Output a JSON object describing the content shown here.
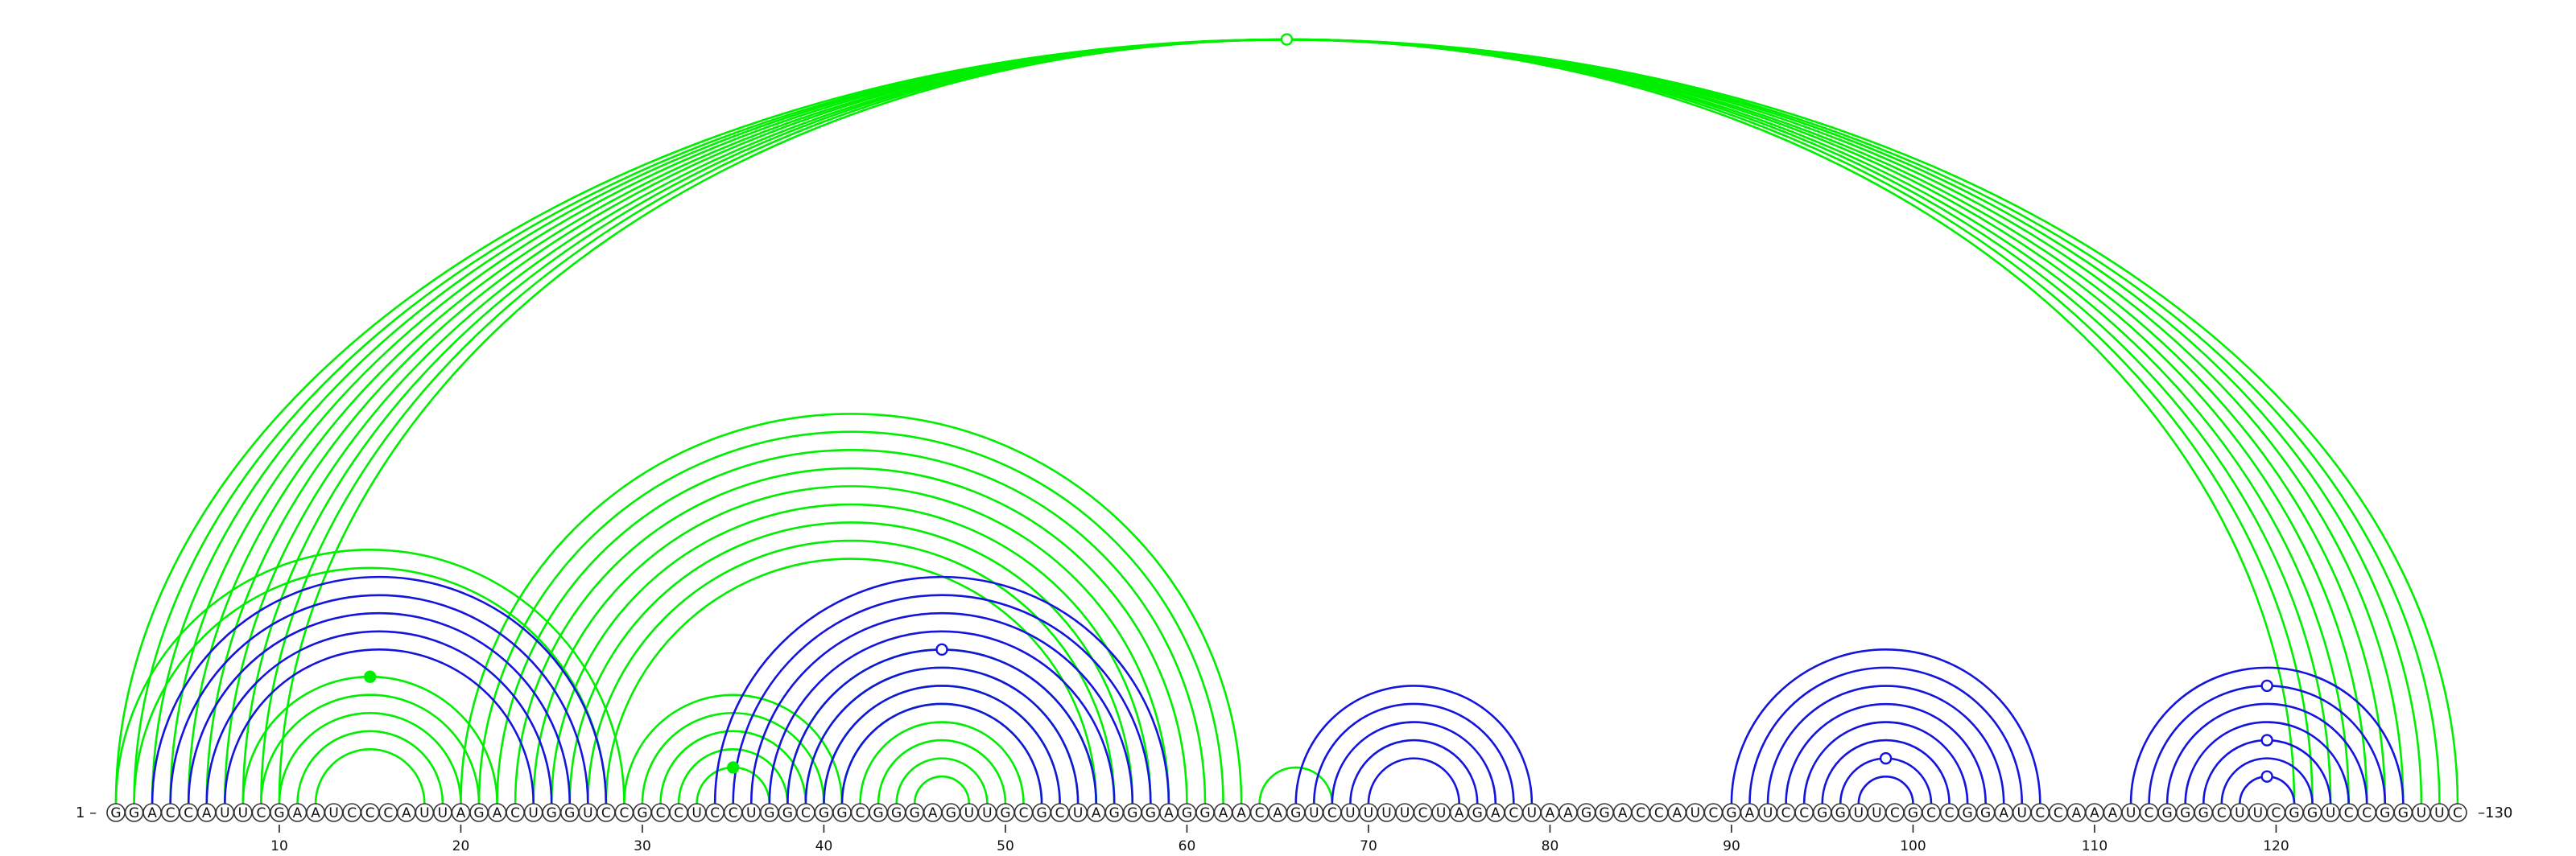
{
  "sequence": "GGACCAUUCGAAUCCCAUUAGACUGGUCCGCCUCCUGGCGGCGGGAGUUGCGCUAGGGAGGAACAGUCUUUUCUAGACUAAGGACCAUCGAUCCGGUUCGCCGGAUCCAAAUCGGGCUUCGGUCCGGUUC",
  "labels": {
    "start": "1 –",
    "end": "–130"
  },
  "ticks": [
    10,
    20,
    30,
    40,
    50,
    60,
    70,
    80,
    90,
    100,
    110,
    120
  ],
  "colors": {
    "green": "#00ee00",
    "blue": "#1414dd"
  },
  "arcs": {
    "blue": [
      [
        3,
        28
      ],
      [
        4,
        27
      ],
      [
        5,
        26
      ],
      [
        6,
        25
      ],
      [
        7,
        24
      ],
      [
        34,
        59
      ],
      [
        35,
        58
      ],
      [
        36,
        57
      ],
      [
        37,
        56
      ],
      [
        38,
        55
      ],
      [
        39,
        54
      ],
      [
        40,
        53
      ],
      [
        41,
        52
      ],
      [
        66,
        79
      ],
      [
        67,
        78
      ],
      [
        68,
        77
      ],
      [
        69,
        76
      ],
      [
        70,
        75
      ],
      [
        90,
        107
      ],
      [
        91,
        106
      ],
      [
        92,
        105
      ],
      [
        93,
        104
      ],
      [
        94,
        103
      ],
      [
        95,
        102
      ],
      [
        96,
        101
      ],
      [
        97,
        100
      ],
      [
        112,
        127
      ],
      [
        113,
        126
      ],
      [
        114,
        125
      ],
      [
        115,
        124
      ],
      [
        116,
        123
      ],
      [
        117,
        122
      ],
      [
        118,
        121
      ]
    ],
    "green": [
      [
        1,
        130
      ],
      [
        2,
        129
      ],
      [
        3,
        128
      ],
      [
        4,
        127
      ],
      [
        5,
        126
      ],
      [
        6,
        125
      ],
      [
        7,
        124
      ],
      [
        8,
        123
      ],
      [
        9,
        122
      ],
      [
        10,
        121
      ],
      [
        1,
        29
      ],
      [
        2,
        28
      ],
      [
        8,
        22
      ],
      [
        9,
        21
      ],
      [
        10,
        20
      ],
      [
        11,
        19
      ],
      [
        12,
        18
      ],
      [
        20,
        63
      ],
      [
        21,
        62
      ],
      [
        22,
        61
      ],
      [
        23,
        60
      ],
      [
        24,
        59
      ],
      [
        25,
        58
      ],
      [
        26,
        57
      ],
      [
        27,
        56
      ],
      [
        28,
        55
      ],
      [
        29,
        41
      ],
      [
        30,
        40
      ],
      [
        31,
        39
      ],
      [
        32,
        38
      ],
      [
        33,
        37
      ],
      [
        38,
        55
      ],
      [
        39,
        54
      ],
      [
        40,
        53
      ],
      [
        41,
        52
      ],
      [
        42,
        51
      ],
      [
        43,
        50
      ],
      [
        44,
        49
      ],
      [
        45,
        48
      ],
      [
        64,
        68
      ]
    ]
  },
  "markers": [
    {
      "kind": "open",
      "color": "green",
      "i": 1,
      "j": 130
    },
    {
      "kind": "filled",
      "color": "green",
      "i": 8,
      "j": 22
    },
    {
      "kind": "filled",
      "color": "green",
      "i": 33,
      "j": 37
    },
    {
      "kind": "open",
      "color": "blue",
      "i": 38,
      "j": 55
    },
    {
      "kind": "open",
      "color": "blue",
      "i": 96,
      "j": 101
    },
    {
      "kind": "open",
      "color": "blue",
      "i": 113,
      "j": 126
    },
    {
      "kind": "open",
      "color": "blue",
      "i": 116,
      "j": 123
    },
    {
      "kind": "open",
      "color": "blue",
      "i": 118,
      "j": 121
    }
  ]
}
